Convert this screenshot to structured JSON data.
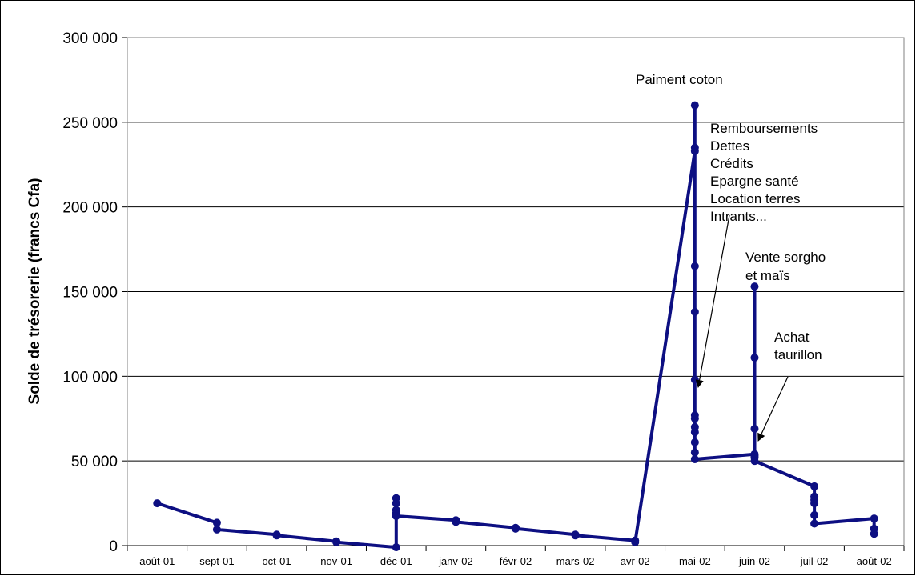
{
  "chart_data": {
    "type": "line",
    "title": "",
    "xlabel": "",
    "ylabel": "Solde de trésorerie (francs Cfa)",
    "categories": [
      "août-01",
      "sept-01",
      "oct-01",
      "nov-01",
      "déc-01",
      "janv-02",
      "févr-02",
      "mars-02",
      "avr-02",
      "mai-02",
      "juin-02",
      "juil-02",
      "août-02"
    ],
    "ylim": [
      0,
      300000
    ],
    "yticks": [
      0,
      50000,
      100000,
      150000,
      200000,
      250000,
      300000
    ],
    "ytick_labels": [
      "0",
      "50 000",
      "100 000",
      "150 000",
      "200 000",
      "250 000",
      "300 000"
    ],
    "grid": "horizontal",
    "color": "#0d0f82",
    "series": [
      {
        "points": [
          [
            0,
            25000
          ],
          [
            1,
            13500
          ],
          [
            1,
            9500
          ],
          [
            2,
            6500
          ],
          [
            2,
            6000
          ],
          [
            3,
            2500
          ],
          [
            3,
            2000
          ],
          [
            4,
            -1000
          ],
          [
            4,
            28000
          ],
          [
            4,
            25000
          ],
          [
            4,
            21000
          ],
          [
            4,
            19000
          ],
          [
            4,
            17500
          ],
          [
            5,
            15000
          ],
          [
            5,
            14000
          ],
          [
            6,
            10500
          ],
          [
            6,
            10000
          ],
          [
            7,
            6500
          ],
          [
            7,
            6000
          ],
          [
            8,
            3000
          ],
          [
            8,
            2000
          ],
          [
            9,
            233000
          ],
          [
            9,
            260000
          ],
          [
            9,
            235000
          ],
          [
            9,
            165000
          ],
          [
            9,
            138000
          ],
          [
            9,
            98000
          ],
          [
            9,
            77000
          ],
          [
            9,
            75000
          ],
          [
            9,
            70000
          ],
          [
            9,
            67000
          ],
          [
            9,
            61000
          ],
          [
            9,
            55000
          ],
          [
            9,
            51000
          ],
          [
            10,
            54000
          ],
          [
            10,
            53000
          ],
          [
            10,
            153000
          ],
          [
            10,
            111000
          ],
          [
            10,
            69000
          ],
          [
            10,
            52000
          ],
          [
            10,
            50000
          ],
          [
            11,
            35000
          ],
          [
            11,
            29000
          ],
          [
            11,
            27000
          ],
          [
            11,
            25000
          ],
          [
            11,
            18000
          ],
          [
            11,
            13000
          ],
          [
            12,
            16000
          ],
          [
            12,
            10000
          ],
          [
            12,
            7000
          ]
        ]
      }
    ],
    "annotations": [
      {
        "id": "paiement",
        "lines": [
          "Paiment coton"
        ]
      },
      {
        "id": "remb",
        "lines": [
          "Remboursements",
          "Dettes",
          "Crédits",
          "Epargne santé",
          "Location terres",
          "Intrants..."
        ]
      },
      {
        "id": "vente",
        "lines": [
          "Vente sorgho",
          "et maïs"
        ]
      },
      {
        "id": "achat",
        "lines": [
          "Achat",
          "taurillon"
        ]
      }
    ]
  }
}
